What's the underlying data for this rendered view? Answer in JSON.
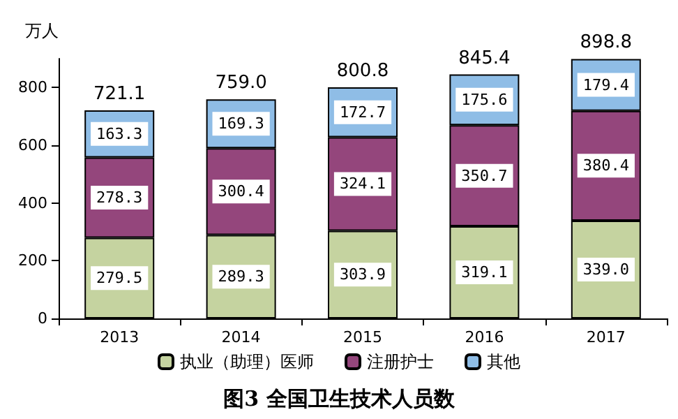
{
  "chart_data": {
    "type": "bar",
    "title": "图3 全国卫生技术人员数",
    "ylabel": "万人",
    "categories": [
      "2013",
      "2014",
      "2015",
      "2016",
      "2017"
    ],
    "stacked": true,
    "series": [
      {
        "name": "执业（助理）医师",
        "color": "#c5d3a0",
        "values": [
          279.5,
          289.3,
          303.9,
          319.1,
          339.0
        ],
        "value_labels": [
          "279.5",
          "289.3",
          "303.9",
          "319.1",
          "339.0"
        ]
      },
      {
        "name": "注册护士",
        "color": "#94467c",
        "values": [
          278.3,
          300.4,
          324.1,
          350.7,
          380.4
        ]
      },
      {
        "name": "其他",
        "color": "#8fbde6",
        "values": [
          163.3,
          169.3,
          172.7,
          175.6,
          179.4
        ]
      }
    ],
    "totals": [
      "721.1",
      "759.0",
      "800.8",
      "845.4",
      "898.8"
    ],
    "data_labels": true,
    "ylim": [
      0,
      900
    ],
    "yticks": [
      0,
      200,
      400,
      600,
      800
    ],
    "grid": false,
    "legend": "bottom"
  }
}
